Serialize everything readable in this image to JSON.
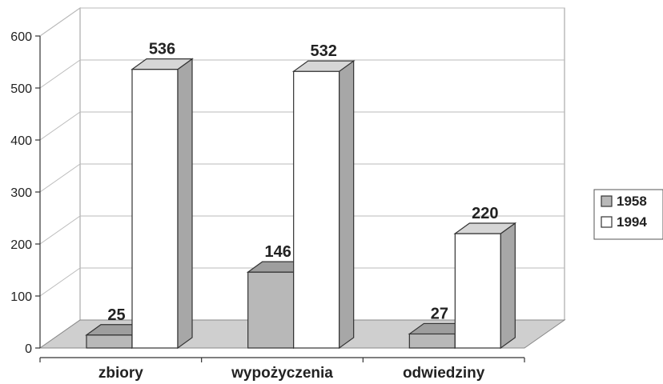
{
  "chart_data": {
    "type": "bar",
    "categories": [
      "zbiory",
      "wypożyczenia",
      "odwiedziny"
    ],
    "series": [
      {
        "name": "1958",
        "values": [
          25,
          146,
          27
        ],
        "color": "#b8b8b8"
      },
      {
        "name": "1994",
        "values": [
          536,
          532,
          220
        ],
        "color": "#ffffff"
      }
    ],
    "yticks": [
      0,
      100,
      200,
      300,
      400,
      500,
      600
    ],
    "ylim": [
      0,
      600
    ],
    "grid": true,
    "legend": "right",
    "style": "3d-bar"
  }
}
